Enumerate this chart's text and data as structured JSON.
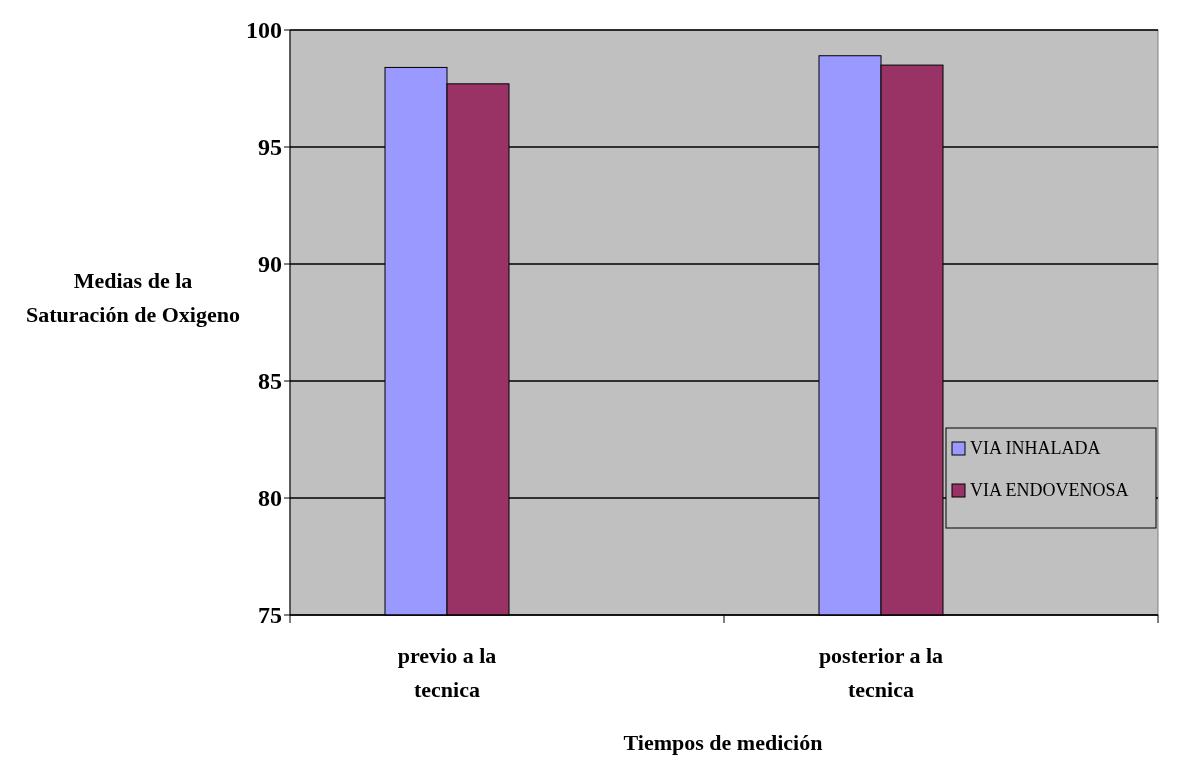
{
  "chart_data": {
    "type": "bar",
    "xlabel": "Tiempos de medición",
    "ylabel": "Medias de la Saturación de Oxigeno",
    "categories": [
      "previo a la tecnica",
      "posterior a la tecnica"
    ],
    "series": [
      {
        "name": "VIA INHALADA",
        "color": "#9999ff",
        "values": [
          98.4,
          98.9
        ]
      },
      {
        "name": "VIA ENDOVENOSA",
        "color": "#993366",
        "values": [
          97.7,
          98.5
        ]
      }
    ],
    "ylim": [
      75,
      100
    ],
    "yticks": [
      75,
      80,
      85,
      90,
      95,
      100
    ],
    "grid": "y",
    "legend": "right"
  }
}
